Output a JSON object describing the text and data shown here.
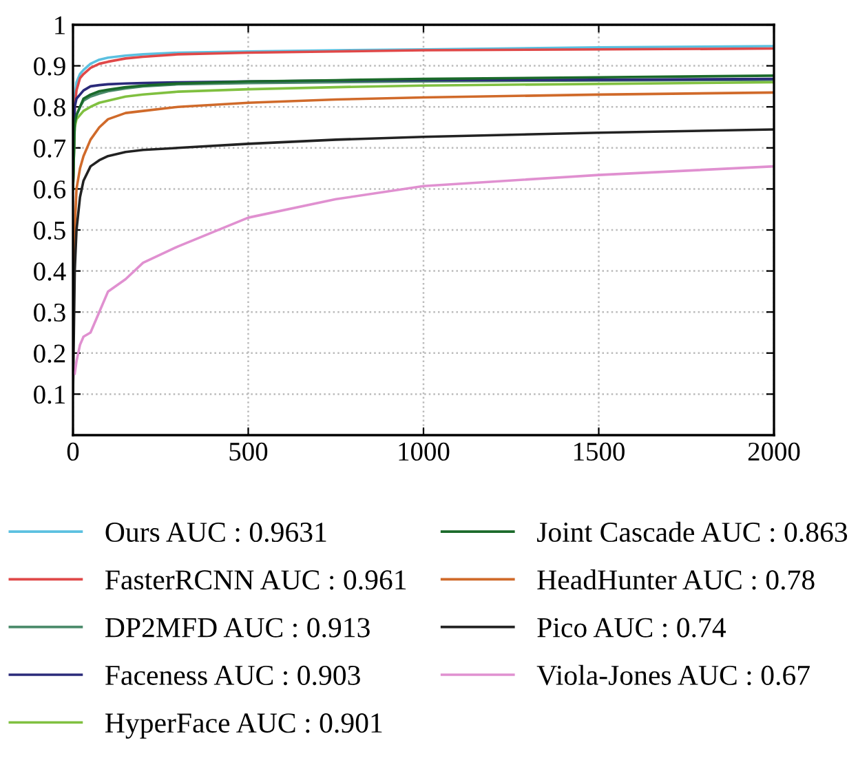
{
  "chart_data": {
    "type": "line",
    "x": [
      0,
      5,
      10,
      20,
      30,
      50,
      75,
      100,
      150,
      200,
      300,
      500,
      750,
      1000,
      1500,
      2000
    ],
    "series": [
      {
        "name": "Ours AUC : 0.9631",
        "color": "#5bc0e0",
        "values": [
          0.7,
          0.82,
          0.86,
          0.88,
          0.89,
          0.905,
          0.915,
          0.92,
          0.925,
          0.928,
          0.932,
          0.935,
          0.938,
          0.94,
          0.945,
          0.948
        ]
      },
      {
        "name": "FasterRCNN AUC : 0.961",
        "color": "#e04848",
        "values": [
          0.6,
          0.8,
          0.84,
          0.87,
          0.88,
          0.895,
          0.905,
          0.91,
          0.918,
          0.922,
          0.928,
          0.932,
          0.935,
          0.938,
          0.94,
          0.942
        ]
      },
      {
        "name": "DP2MFD AUC : 0.913",
        "color": "#4a8a6a",
        "values": [
          0.6,
          0.76,
          0.78,
          0.8,
          0.815,
          0.825,
          0.832,
          0.838,
          0.845,
          0.85,
          0.855,
          0.858,
          0.86,
          0.862,
          0.864,
          0.866
        ]
      },
      {
        "name": "Faceness AUC : 0.903",
        "color": "#2a2a7a",
        "values": [
          0.6,
          0.8,
          0.82,
          0.83,
          0.84,
          0.85,
          0.853,
          0.855,
          0.857,
          0.858,
          0.86,
          0.862,
          0.864,
          0.865,
          0.866,
          0.868
        ]
      },
      {
        "name": "HyperFace AUC : 0.901",
        "color": "#80c040",
        "values": [
          0.6,
          0.75,
          0.77,
          0.78,
          0.79,
          0.8,
          0.81,
          0.815,
          0.825,
          0.83,
          0.837,
          0.843,
          0.848,
          0.852,
          0.856,
          0.86
        ]
      },
      {
        "name": "Joint Cascade AUC : 0.863",
        "color": "#1a6a2a",
        "values": [
          0.6,
          0.76,
          0.78,
          0.8,
          0.82,
          0.83,
          0.838,
          0.842,
          0.848,
          0.852,
          0.857,
          0.862,
          0.865,
          0.868,
          0.872,
          0.876
        ]
      },
      {
        "name": "HeadHunter AUC : 0.78",
        "color": "#d06a2a",
        "values": [
          0.2,
          0.5,
          0.6,
          0.65,
          0.68,
          0.72,
          0.75,
          0.77,
          0.785,
          0.79,
          0.8,
          0.81,
          0.818,
          0.823,
          0.83,
          0.835
        ]
      },
      {
        "name": "Pico AUC : 0.74",
        "color": "#222222",
        "values": [
          0.1,
          0.4,
          0.5,
          0.58,
          0.62,
          0.655,
          0.67,
          0.68,
          0.69,
          0.695,
          0.7,
          0.71,
          0.72,
          0.727,
          0.737,
          0.745
        ]
      },
      {
        "name": "Viola-Jones AUC : 0.67",
        "color": "#e090d0",
        "values": [
          null,
          0.15,
          0.18,
          0.22,
          0.24,
          0.25,
          0.3,
          0.35,
          0.38,
          0.42,
          0.46,
          0.53,
          0.575,
          0.607,
          0.634,
          0.655
        ]
      }
    ],
    "xlim": [
      0,
      2000
    ],
    "xticks": [
      0,
      500,
      1000,
      1500,
      2000
    ],
    "ylim": [
      0,
      1
    ],
    "yticks": [
      0.1,
      0.2,
      0.3,
      0.4,
      0.5,
      0.6,
      0.7,
      0.8,
      0.9,
      1
    ],
    "grid": true,
    "legend": "bottom"
  }
}
